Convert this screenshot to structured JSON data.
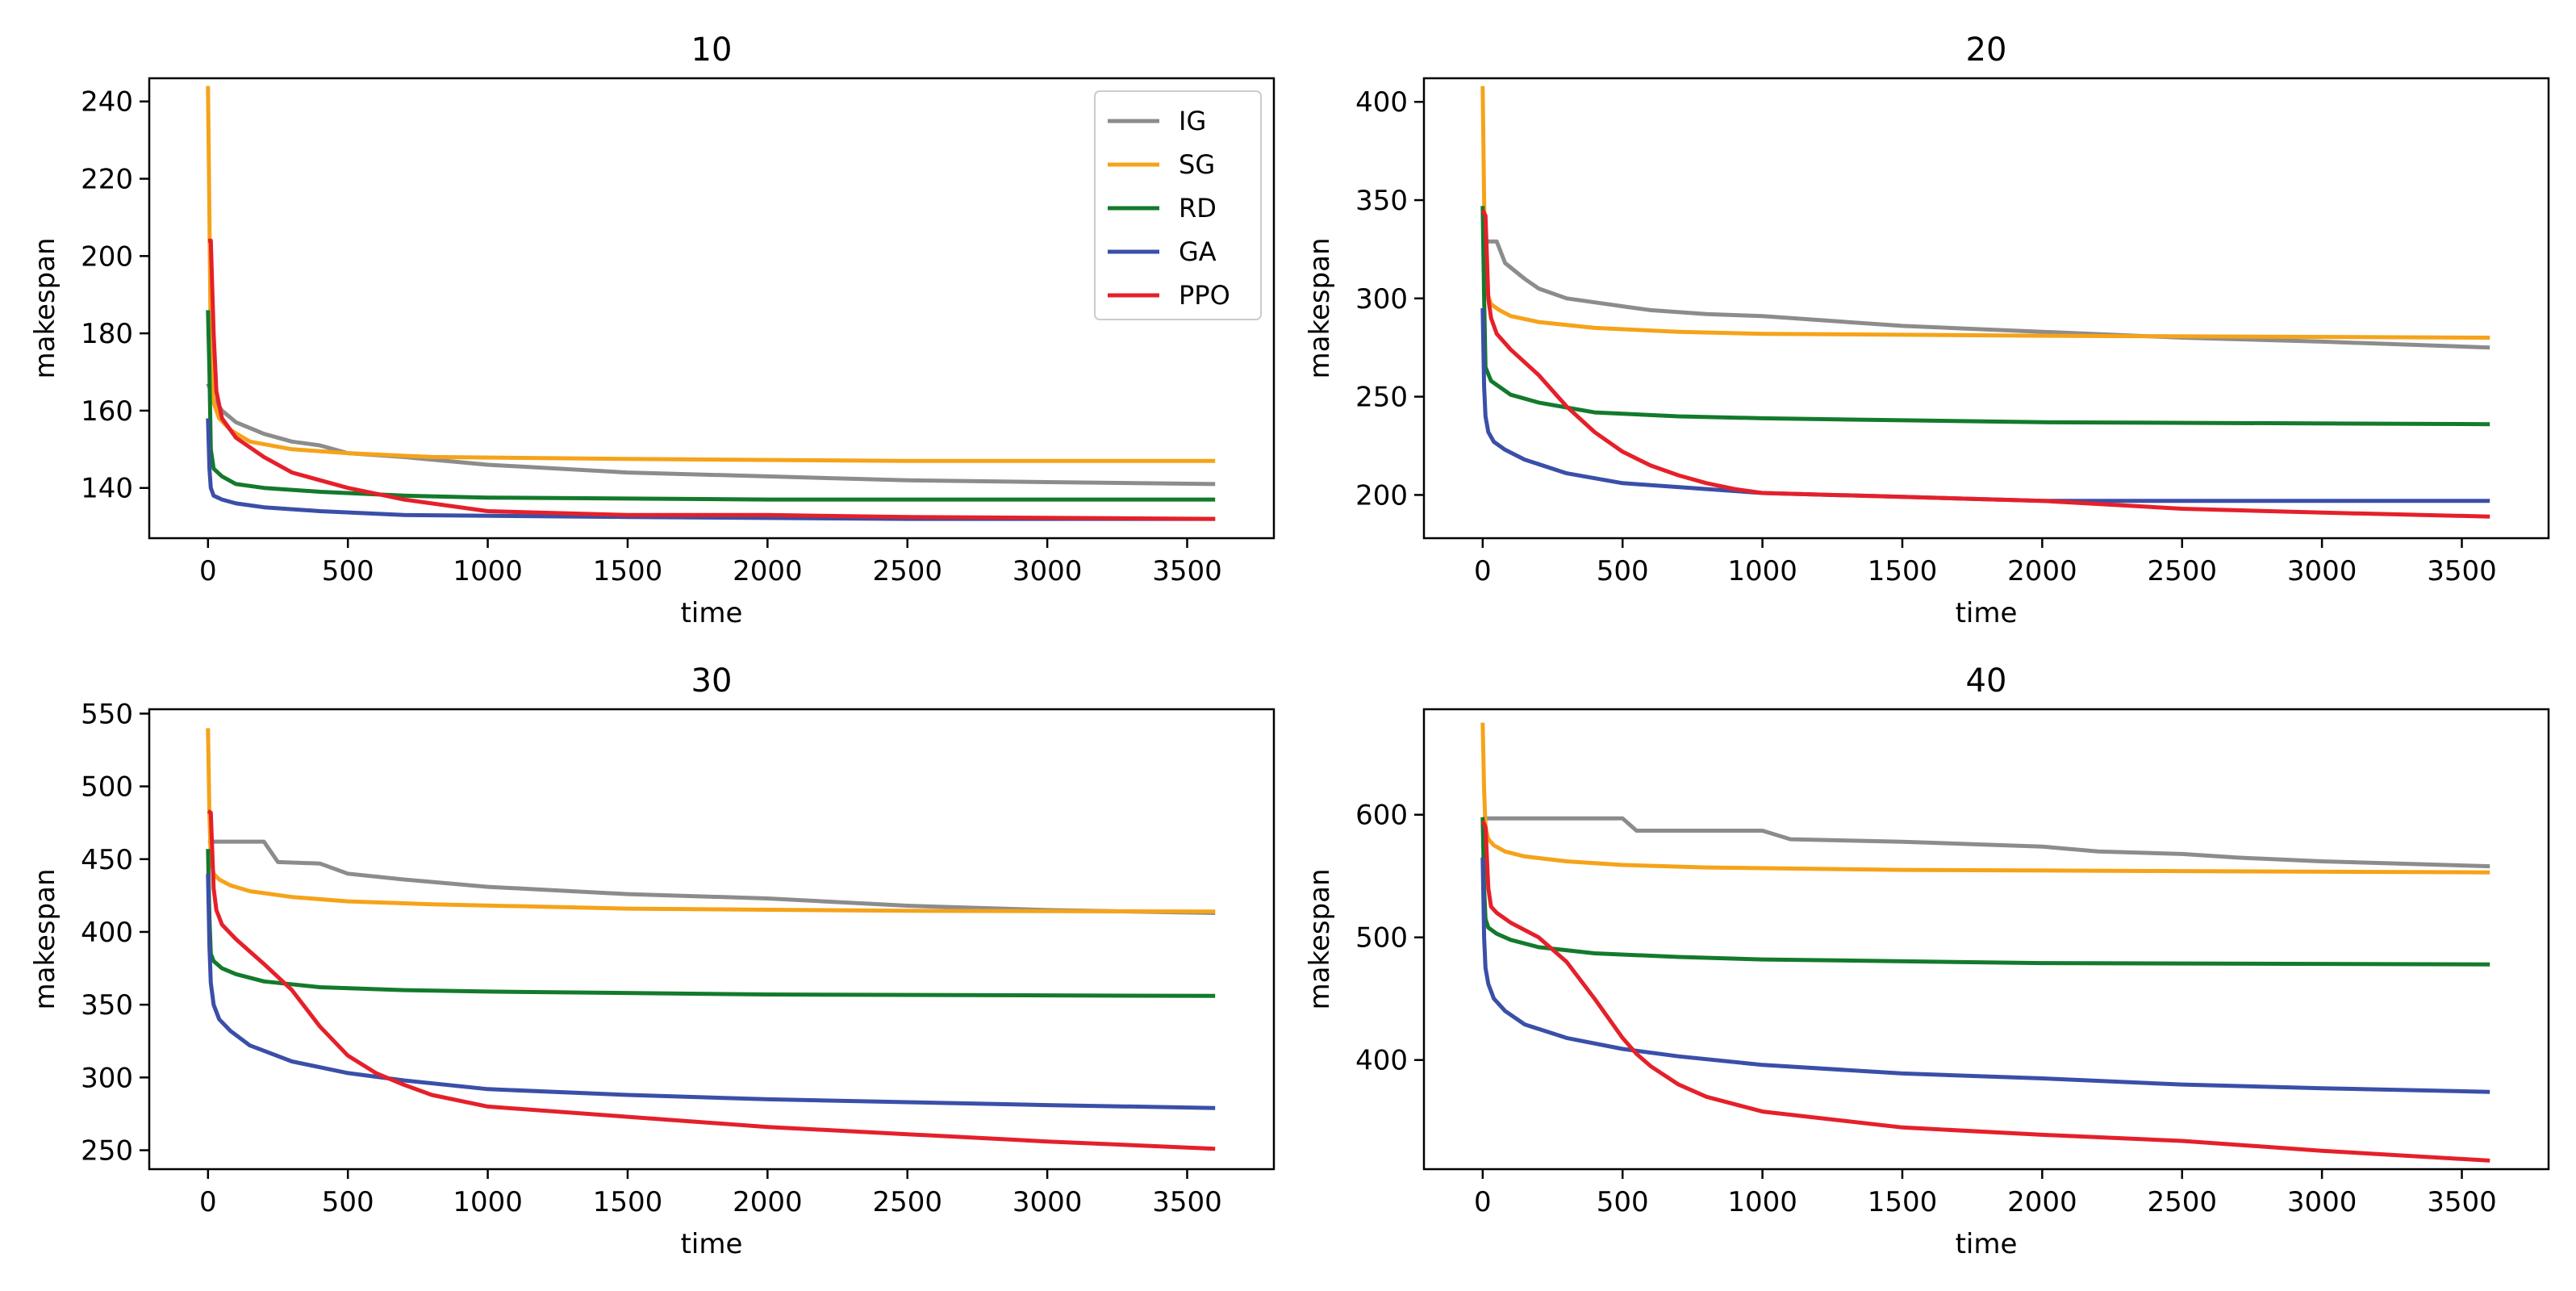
{
  "figure": {
    "layout": "2x2",
    "series_style": [
      {
        "name": "IG",
        "color": "#8c8c8c"
      },
      {
        "name": "SG",
        "color": "#f5a31a"
      },
      {
        "name": "RD",
        "color": "#137a2c"
      },
      {
        "name": "GA",
        "color": "#3a4fa8"
      },
      {
        "name": "PPO",
        "color": "#e5202a"
      }
    ],
    "legend_location": "top-right of first panel"
  },
  "chart_data": [
    {
      "type": "line",
      "title": "10",
      "xlabel": "time",
      "ylabel": "makespan",
      "xlim": [
        -210,
        3810
      ],
      "ylim": [
        127,
        246
      ],
      "xticks": [
        0,
        500,
        1000,
        1500,
        2000,
        2500,
        3000,
        3500
      ],
      "yticks": [
        140,
        160,
        180,
        200,
        220,
        240
      ],
      "legend": true,
      "series": [
        {
          "name": "IG",
          "x": [
            0,
            10,
            20,
            50,
            100,
            200,
            300,
            400,
            500,
            700,
            1000,
            1500,
            2000,
            2500,
            3000,
            3600
          ],
          "y": [
            167,
            165,
            163,
            160,
            157,
            154,
            152,
            151,
            149,
            148,
            146,
            144,
            143,
            142,
            141.5,
            141
          ]
        },
        {
          "name": "SG",
          "x": [
            0,
            5,
            10,
            20,
            40,
            80,
            150,
            300,
            500,
            800,
            1500,
            2500,
            3600
          ],
          "y": [
            244,
            210,
            175,
            162,
            158,
            155,
            152,
            150,
            149,
            148,
            147.5,
            147,
            147
          ]
        },
        {
          "name": "RD",
          "x": [
            0,
            5,
            10,
            20,
            50,
            100,
            200,
            400,
            700,
            1000,
            2000,
            3600
          ],
          "y": [
            186,
            170,
            150,
            145,
            143,
            141,
            140,
            139,
            138,
            137.5,
            137,
            137
          ]
        },
        {
          "name": "GA",
          "x": [
            0,
            5,
            10,
            20,
            50,
            100,
            200,
            400,
            700,
            1500,
            2500,
            3600
          ],
          "y": [
            158,
            145,
            140,
            138,
            137,
            136,
            135,
            134,
            133,
            132.5,
            132,
            132
          ]
        },
        {
          "name": "PPO",
          "x": [
            0,
            10,
            20,
            30,
            50,
            80,
            100,
            200,
            300,
            500,
            700,
            1000,
            1500,
            2000,
            2500,
            3600
          ],
          "y": [
            204,
            204,
            180,
            165,
            158,
            155,
            153,
            148,
            144,
            140,
            137,
            134,
            133,
            133,
            132.5,
            132
          ]
        }
      ]
    },
    {
      "type": "line",
      "title": "20",
      "xlabel": "time",
      "ylabel": "makespan",
      "xlim": [
        -210,
        3810
      ],
      "ylim": [
        178,
        412
      ],
      "xticks": [
        0,
        500,
        1000,
        1500,
        2000,
        2500,
        3000,
        3500
      ],
      "yticks": [
        200,
        250,
        300,
        350,
        400
      ],
      "legend": false,
      "series": [
        {
          "name": "IG",
          "x": [
            0,
            10,
            50,
            80,
            150,
            200,
            300,
            400,
            500,
            600,
            800,
            1000,
            1500,
            2000,
            2500,
            3000,
            3600
          ],
          "y": [
            330,
            329,
            329,
            318,
            310,
            305,
            300,
            298,
            296,
            294,
            292,
            291,
            286,
            283,
            280,
            278,
            275
          ]
        },
        {
          "name": "SG",
          "x": [
            0,
            5,
            10,
            30,
            60,
            100,
            200,
            400,
            700,
            1000,
            2000,
            3600
          ],
          "y": [
            408,
            350,
            305,
            297,
            294,
            291,
            288,
            285,
            283,
            282,
            281,
            280
          ]
        },
        {
          "name": "RD",
          "x": [
            0,
            5,
            10,
            30,
            60,
            100,
            200,
            400,
            700,
            1000,
            2000,
            3600
          ],
          "y": [
            347,
            300,
            265,
            258,
            255,
            251,
            247,
            242,
            240,
            239,
            237,
            236
          ]
        },
        {
          "name": "GA",
          "x": [
            0,
            5,
            10,
            20,
            40,
            80,
            150,
            300,
            500,
            800,
            1000,
            1500,
            2000,
            3600
          ],
          "y": [
            295,
            255,
            240,
            232,
            227,
            223,
            218,
            211,
            206,
            203,
            201,
            199,
            197,
            197
          ]
        },
        {
          "name": "PPO",
          "x": [
            0,
            10,
            20,
            30,
            50,
            100,
            200,
            300,
            400,
            500,
            600,
            700,
            800,
            900,
            1000,
            1500,
            2000,
            2500,
            3000,
            3600
          ],
          "y": [
            345,
            342,
            300,
            290,
            282,
            274,
            261,
            245,
            232,
            222,
            215,
            210,
            206,
            203,
            201,
            199,
            197,
            193,
            191,
            189
          ]
        }
      ]
    },
    {
      "type": "line",
      "title": "30",
      "xlabel": "time",
      "ylabel": "makespan",
      "xlim": [
        -210,
        3810
      ],
      "ylim": [
        237,
        553
      ],
      "xticks": [
        0,
        500,
        1000,
        1500,
        2000,
        2500,
        3000,
        3500
      ],
      "yticks": [
        250,
        300,
        350,
        400,
        450,
        500,
        550
      ],
      "legend": false,
      "series": [
        {
          "name": "IG",
          "x": [
            0,
            10,
            200,
            250,
            400,
            500,
            700,
            1000,
            1500,
            2000,
            2500,
            3000,
            3600
          ],
          "y": [
            462,
            462,
            462,
            448,
            447,
            440,
            436,
            431,
            426,
            423,
            418,
            415,
            413
          ]
        },
        {
          "name": "SG",
          "x": [
            0,
            5,
            10,
            20,
            40,
            80,
            150,
            300,
            500,
            800,
            1500,
            2500,
            3600
          ],
          "y": [
            540,
            480,
            450,
            440,
            436,
            432,
            428,
            424,
            421,
            419,
            416,
            414.5,
            414
          ]
        },
        {
          "name": "RD",
          "x": [
            0,
            5,
            10,
            20,
            50,
            100,
            200,
            400,
            700,
            1000,
            2000,
            3600
          ],
          "y": [
            457,
            410,
            385,
            380,
            375,
            371,
            366,
            362,
            360,
            359,
            357,
            356
          ]
        },
        {
          "name": "GA",
          "x": [
            0,
            5,
            10,
            20,
            40,
            80,
            150,
            300,
            500,
            700,
            1000,
            1500,
            2000,
            2500,
            3000,
            3600
          ],
          "y": [
            440,
            390,
            365,
            350,
            340,
            332,
            322,
            311,
            303,
            298,
            292,
            288,
            285,
            283,
            281,
            279
          ]
        },
        {
          "name": "PPO",
          "x": [
            0,
            10,
            20,
            30,
            50,
            100,
            200,
            300,
            400,
            500,
            600,
            700,
            800,
            1000,
            1500,
            2000,
            2500,
            3000,
            3600
          ],
          "y": [
            483,
            482,
            430,
            415,
            405,
            395,
            378,
            360,
            335,
            315,
            303,
            295,
            288,
            280,
            273,
            266,
            261,
            256,
            251
          ]
        }
      ]
    },
    {
      "type": "line",
      "title": "40",
      "xlabel": "time",
      "ylabel": "makespan",
      "xlim": [
        -210,
        3810
      ],
      "ylim": [
        311,
        686
      ],
      "xticks": [
        0,
        500,
        1000,
        1500,
        2000,
        2500,
        3000,
        3500
      ],
      "yticks": [
        400,
        500,
        600
      ],
      "legend": false,
      "series": [
        {
          "name": "IG",
          "x": [
            0,
            10,
            500,
            550,
            1000,
            1100,
            1500,
            2000,
            2200,
            2500,
            2700,
            3000,
            3600
          ],
          "y": [
            598,
            597,
            597,
            587,
            587,
            580,
            578,
            574,
            570,
            568,
            565,
            562,
            558
          ]
        },
        {
          "name": "SG",
          "x": [
            0,
            5,
            10,
            20,
            40,
            80,
            150,
            300,
            500,
            800,
            1500,
            2500,
            3600
          ],
          "y": [
            675,
            620,
            590,
            580,
            575,
            570,
            566,
            562,
            559,
            557,
            555,
            554,
            553
          ]
        },
        {
          "name": "RD",
          "x": [
            0,
            5,
            10,
            20,
            50,
            100,
            200,
            400,
            700,
            1000,
            2000,
            3600
          ],
          "y": [
            598,
            540,
            515,
            508,
            503,
            498,
            492,
            487,
            484,
            482,
            479,
            478
          ]
        },
        {
          "name": "GA",
          "x": [
            0,
            5,
            10,
            20,
            40,
            80,
            150,
            300,
            500,
            700,
            1000,
            1500,
            2000,
            2500,
            3000,
            3600
          ],
          "y": [
            565,
            500,
            475,
            462,
            450,
            440,
            429,
            418,
            409,
            403,
            396,
            389,
            385,
            380,
            377,
            374
          ]
        },
        {
          "name": "PPO",
          "x": [
            0,
            10,
            20,
            30,
            50,
            100,
            200,
            300,
            400,
            500,
            550,
            600,
            700,
            800,
            1000,
            1500,
            2000,
            2500,
            3000,
            3600
          ],
          "y": [
            595,
            590,
            540,
            525,
            520,
            512,
            500,
            480,
            450,
            418,
            405,
            395,
            380,
            370,
            358,
            345,
            339,
            334,
            326,
            318
          ]
        }
      ]
    }
  ]
}
